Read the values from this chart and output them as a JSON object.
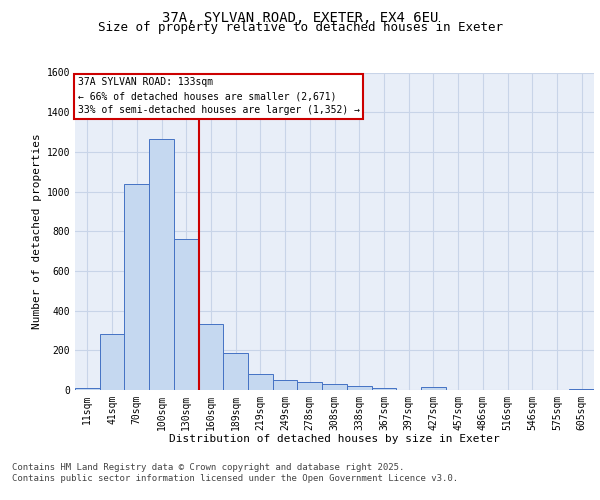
{
  "title_line1": "37A, SYLVAN ROAD, EXETER, EX4 6EU",
  "title_line2": "Size of property relative to detached houses in Exeter",
  "xlabel": "Distribution of detached houses by size in Exeter",
  "ylabel": "Number of detached properties",
  "categories": [
    "11sqm",
    "41sqm",
    "70sqm",
    "100sqm",
    "130sqm",
    "160sqm",
    "189sqm",
    "219sqm",
    "249sqm",
    "278sqm",
    "308sqm",
    "338sqm",
    "367sqm",
    "397sqm",
    "427sqm",
    "457sqm",
    "486sqm",
    "516sqm",
    "546sqm",
    "575sqm",
    "605sqm"
  ],
  "values": [
    8,
    280,
    1040,
    1265,
    760,
    335,
    185,
    80,
    50,
    38,
    28,
    20,
    12,
    0,
    14,
    0,
    0,
    0,
    0,
    0,
    5
  ],
  "bar_color": "#c5d8f0",
  "bar_edge_color": "#4472c4",
  "grid_color": "#c8d4e8",
  "background_color": "#e8eef8",
  "vline_x": 4.5,
  "vline_color": "#cc0000",
  "annotation_text": "37A SYLVAN ROAD: 133sqm\n← 66% of detached houses are smaller (2,671)\n33% of semi-detached houses are larger (1,352) →",
  "annotation_box_color": "#cc0000",
  "ylim": [
    0,
    1600
  ],
  "yticks": [
    0,
    200,
    400,
    600,
    800,
    1000,
    1200,
    1400,
    1600
  ],
  "footer_line1": "Contains HM Land Registry data © Crown copyright and database right 2025.",
  "footer_line2": "Contains public sector information licensed under the Open Government Licence v3.0.",
  "title_fontsize": 10,
  "subtitle_fontsize": 9,
  "label_fontsize": 8,
  "tick_fontsize": 7,
  "annotation_fontsize": 7,
  "footer_fontsize": 6.5
}
